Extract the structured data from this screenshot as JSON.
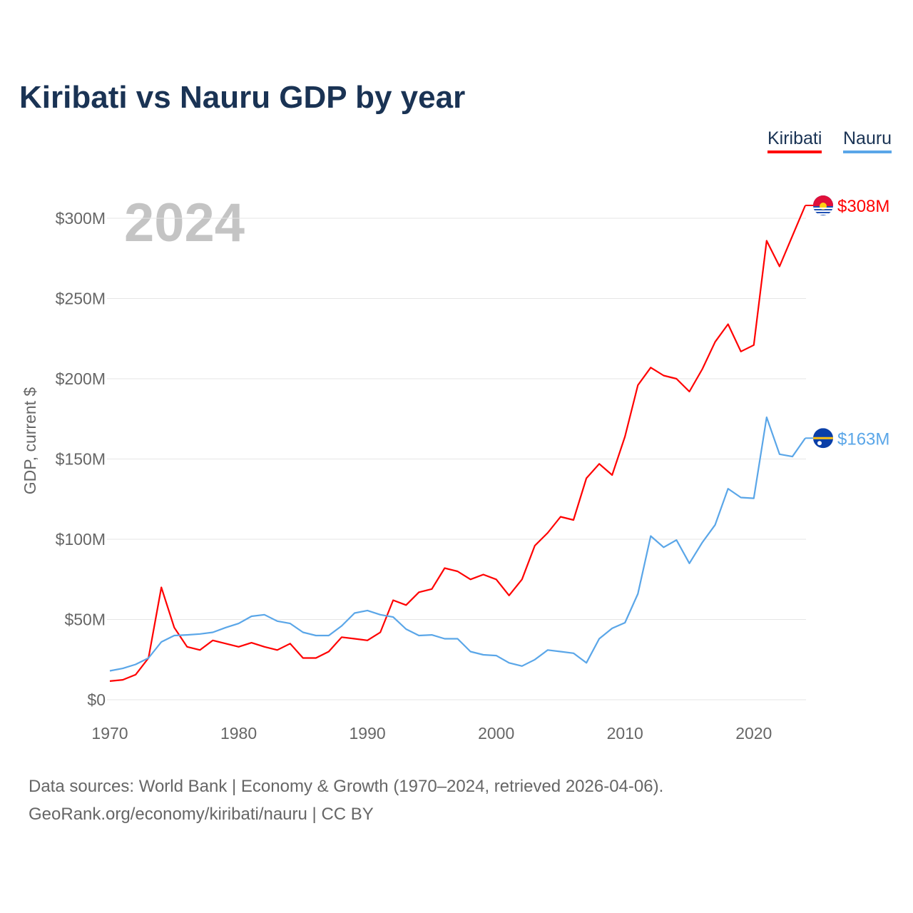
{
  "chart_data": {
    "type": "line",
    "title": "Kiribati vs Nauru GDP by year",
    "xlabel": "",
    "ylabel": "GDP, current $",
    "year_label": "2024",
    "xlim": [
      1970,
      2024
    ],
    "ylim": [
      0,
      320
    ],
    "y_ticks": [
      0,
      50,
      100,
      150,
      200,
      250,
      300
    ],
    "y_tick_labels": [
      "$0",
      "$50M",
      "$100M",
      "$150M",
      "$200M",
      "$250M",
      "$300M"
    ],
    "x_ticks": [
      1970,
      1980,
      1990,
      2000,
      2010,
      2020
    ],
    "x_tick_labels": [
      "1970",
      "1980",
      "1990",
      "2000",
      "2010",
      "2020"
    ],
    "grid": true,
    "legend_position": "top-right",
    "x": [
      1970,
      1971,
      1972,
      1973,
      1974,
      1975,
      1976,
      1977,
      1978,
      1979,
      1980,
      1981,
      1982,
      1983,
      1984,
      1985,
      1986,
      1987,
      1988,
      1989,
      1990,
      1991,
      1992,
      1993,
      1994,
      1995,
      1996,
      1997,
      1998,
      1999,
      2000,
      2001,
      2002,
      2003,
      2004,
      2005,
      2006,
      2007,
      2008,
      2009,
      2010,
      2011,
      2012,
      2013,
      2014,
      2015,
      2016,
      2017,
      2018,
      2019,
      2020,
      2021,
      2022,
      2023,
      2024
    ],
    "series": [
      {
        "name": "Kiribati",
        "color": "#ff0000",
        "end_label": "$308M",
        "flag": "kiribati-flag",
        "values": [
          11.6,
          12.4,
          15.6,
          26,
          70,
          45,
          33,
          31,
          37,
          35,
          33,
          35.5,
          33,
          31,
          35,
          26,
          26,
          30,
          39,
          38,
          37,
          42,
          62,
          59,
          67,
          69,
          82,
          80,
          75,
          78,
          75,
          65,
          75,
          96,
          104,
          114,
          112,
          138,
          147,
          140,
          164,
          196,
          207,
          202,
          200,
          192,
          206,
          223,
          234,
          217,
          221,
          286,
          270,
          289,
          308
        ]
      },
      {
        "name": "Nauru",
        "color": "#5aa6e8",
        "end_label": "$163M",
        "flag": "nauru-flag",
        "values": [
          18,
          19.5,
          22,
          26,
          36,
          40,
          40.4,
          41,
          42,
          45,
          47.5,
          52,
          53,
          49,
          47.5,
          42,
          40,
          40,
          46,
          54,
          55.6,
          53,
          51.5,
          44,
          40,
          40.4,
          38,
          38,
          30,
          28,
          27.5,
          23,
          21,
          25,
          31,
          30,
          29,
          23,
          38,
          44.5,
          48,
          66,
          102,
          95,
          99.5,
          85,
          98,
          109,
          131.5,
          126,
          125.5,
          176,
          153,
          151.5,
          163
        ]
      }
    ]
  },
  "footer": {
    "line1": "Data sources: World Bank | Economy & Growth (1970–2024, retrieved 2026-04-06).",
    "line2": "GeoRank.org/economy/kiribati/nauru | CC BY"
  }
}
